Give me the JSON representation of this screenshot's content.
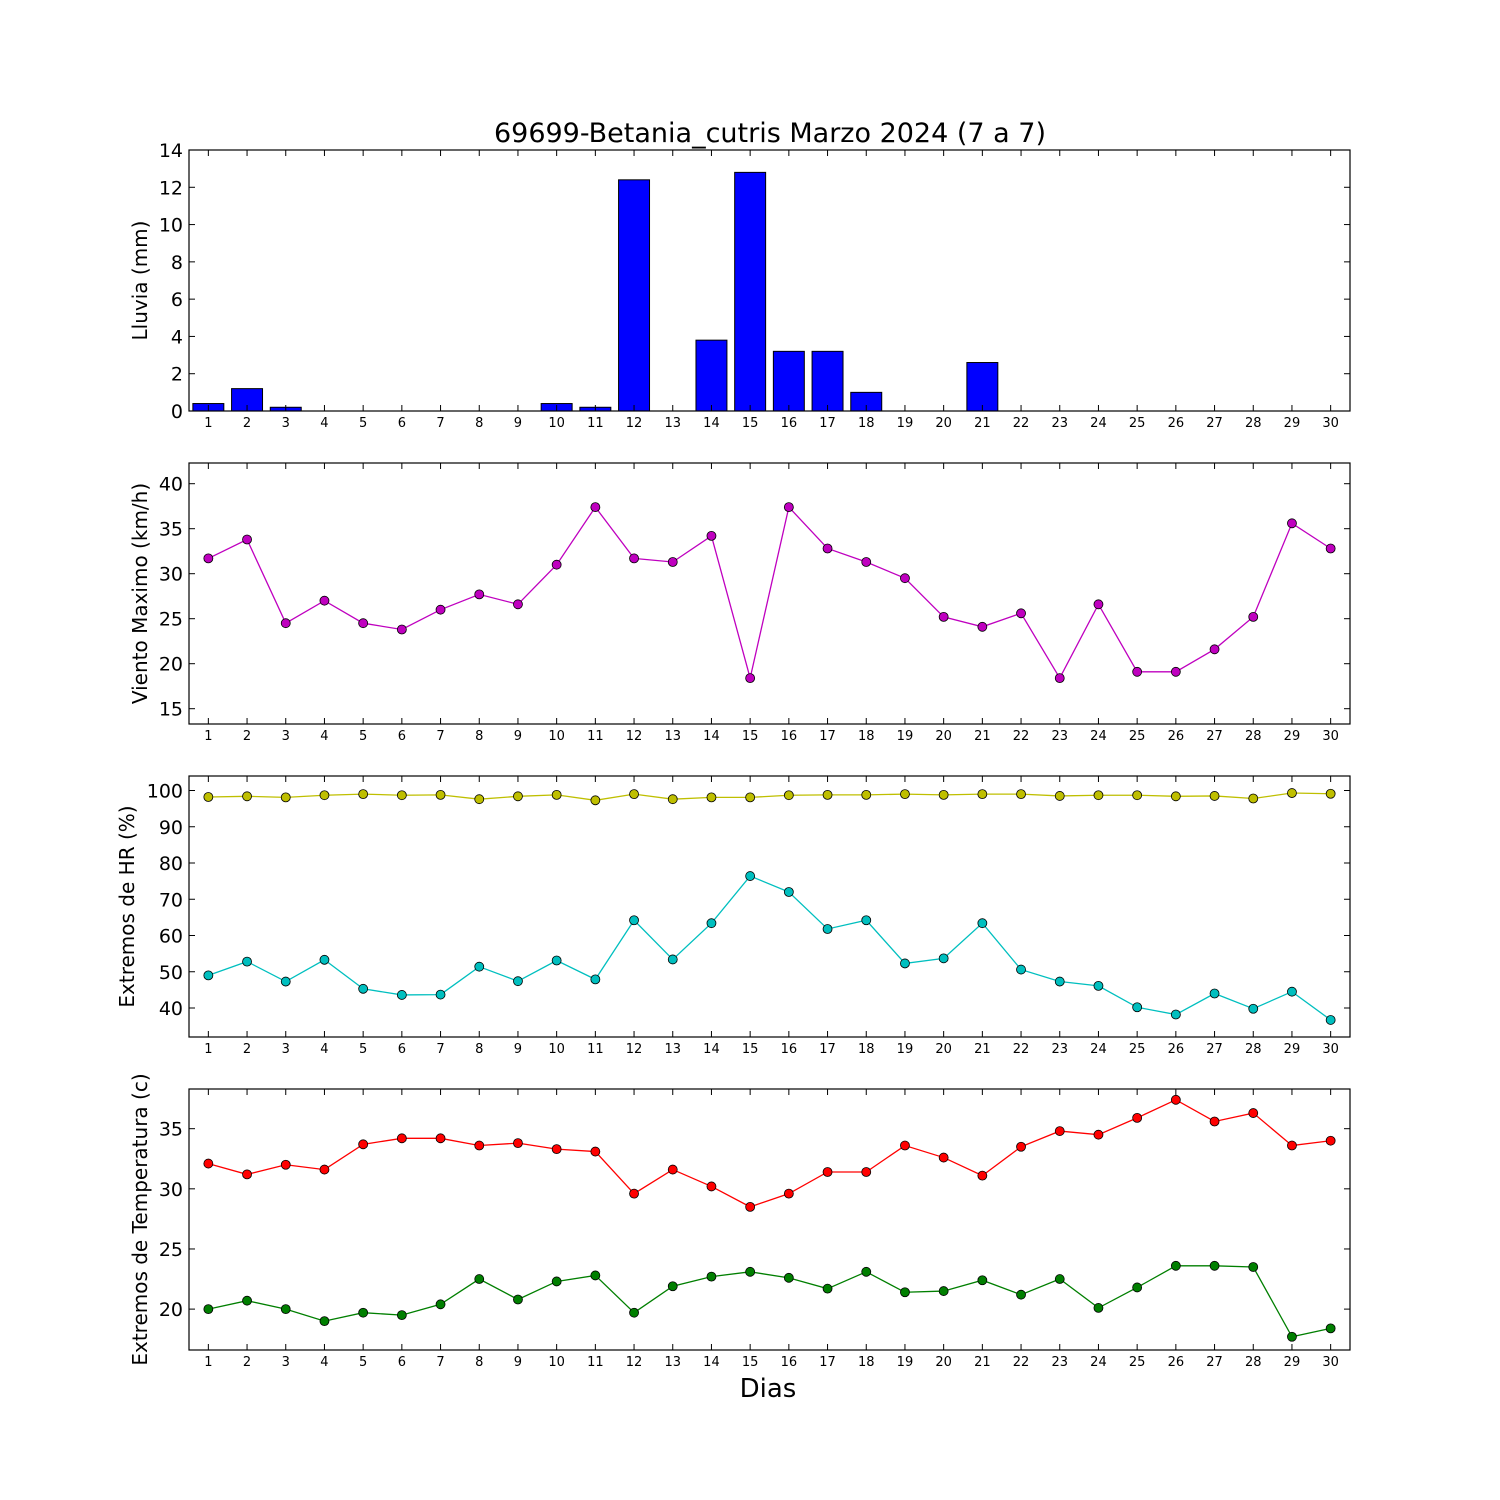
{
  "title": "69699-Betania_cutris Marzo 2024  (7 a 7)",
  "xlabel": "Dias",
  "chart_data": [
    {
      "type": "bar",
      "ylabel": "Lluvia (mm)",
      "x": [
        1,
        2,
        3,
        4,
        5,
        6,
        7,
        8,
        9,
        10,
        11,
        12,
        13,
        14,
        15,
        16,
        17,
        18,
        19,
        20,
        21,
        22,
        23,
        24,
        25,
        26,
        27,
        28,
        29,
        30
      ],
      "xlim": [
        0.5,
        30.5
      ],
      "ylim": [
        0,
        14
      ],
      "yticks": [
        0,
        2,
        4,
        6,
        8,
        10,
        12,
        14
      ],
      "series": [
        {
          "color": "#0000ff",
          "values": [
            0.4,
            1.2,
            0.2,
            0,
            0,
            0,
            0,
            0,
            0,
            0.4,
            0.2,
            12.4,
            0,
            3.8,
            12.8,
            3.2,
            3.2,
            1.0,
            0,
            0,
            2.6,
            0,
            0,
            0,
            0,
            0,
            0,
            0,
            0,
            0
          ]
        }
      ]
    },
    {
      "type": "line",
      "ylabel": "Viento Maximo (km/h)",
      "x": [
        1,
        2,
        3,
        4,
        5,
        6,
        7,
        8,
        9,
        10,
        11,
        12,
        13,
        14,
        15,
        16,
        17,
        18,
        19,
        20,
        21,
        22,
        23,
        24,
        25,
        26,
        27,
        28,
        29,
        30
      ],
      "xlim": [
        0.5,
        30.5
      ],
      "ylim": [
        13.3,
        42.3
      ],
      "yticks": [
        15,
        20,
        25,
        30,
        35,
        40
      ],
      "series": [
        {
          "color": "#bf00bf",
          "values": [
            31.7,
            33.8,
            24.5,
            27.0,
            24.5,
            23.8,
            26.0,
            27.7,
            26.6,
            31.0,
            37.4,
            31.7,
            31.3,
            34.2,
            18.4,
            37.4,
            32.8,
            31.3,
            29.5,
            25.2,
            24.1,
            25.6,
            18.4,
            26.6,
            19.1,
            19.1,
            21.6,
            25.2,
            35.6,
            32.8
          ]
        }
      ]
    },
    {
      "type": "line",
      "ylabel": "Extremos de HR (%)",
      "x": [
        1,
        2,
        3,
        4,
        5,
        6,
        7,
        8,
        9,
        10,
        11,
        12,
        13,
        14,
        15,
        16,
        17,
        18,
        19,
        20,
        21,
        22,
        23,
        24,
        25,
        26,
        27,
        28,
        29,
        30
      ],
      "xlim": [
        0.5,
        30.5
      ],
      "ylim": [
        32,
        104
      ],
      "yticks": [
        40,
        50,
        60,
        70,
        80,
        90,
        100
      ],
      "series": [
        {
          "color": "#bfbf00",
          "values": [
            98.2,
            98.4,
            98.1,
            98.7,
            99.0,
            98.7,
            98.8,
            97.6,
            98.4,
            98.8,
            97.3,
            99.0,
            97.6,
            98.1,
            98.1,
            98.7,
            98.8,
            98.8,
            99.0,
            98.8,
            99.0,
            99.0,
            98.5,
            98.7,
            98.7,
            98.4,
            98.5,
            97.8,
            99.3,
            99.1
          ]
        },
        {
          "color": "#00bfbf",
          "values": [
            49,
            52.8,
            47.3,
            53.3,
            45.3,
            43.6,
            43.7,
            51.4,
            47.4,
            53.1,
            47.9,
            64.2,
            53.4,
            63.4,
            76.4,
            72,
            61.8,
            64.2,
            52.3,
            53.7,
            63.4,
            50.6,
            47.3,
            46.1,
            40.2,
            38.2,
            44.0,
            39.8,
            44.5,
            36.7
          ]
        }
      ]
    },
    {
      "type": "line",
      "ylabel": "Extremos de Temperatura (c)",
      "x": [
        1,
        2,
        3,
        4,
        5,
        6,
        7,
        8,
        9,
        10,
        11,
        12,
        13,
        14,
        15,
        16,
        17,
        18,
        19,
        20,
        21,
        22,
        23,
        24,
        25,
        26,
        27,
        28,
        29,
        30
      ],
      "xlim": [
        0.5,
        30.5
      ],
      "ylim": [
        16.6,
        38.3
      ],
      "yticks": [
        20,
        25,
        30,
        35
      ],
      "series": [
        {
          "color": "#ff0000",
          "values": [
            32.1,
            31.2,
            32.0,
            31.6,
            33.7,
            34.2,
            34.2,
            33.6,
            33.8,
            33.3,
            33.1,
            29.6,
            31.6,
            30.2,
            28.5,
            29.6,
            31.4,
            31.4,
            33.6,
            32.6,
            31.1,
            33.5,
            34.8,
            34.5,
            35.9,
            37.4,
            35.6,
            36.3,
            33.6,
            34.0
          ]
        },
        {
          "color": "#007f00",
          "values": [
            20.0,
            20.7,
            20.0,
            19.0,
            19.7,
            19.5,
            20.4,
            22.5,
            20.8,
            22.3,
            22.8,
            19.7,
            21.9,
            22.7,
            23.1,
            22.6,
            21.7,
            23.1,
            21.4,
            21.5,
            22.4,
            21.2,
            22.5,
            20.1,
            21.8,
            23.6,
            23.6,
            23.5,
            17.7,
            18.4
          ]
        }
      ]
    }
  ]
}
